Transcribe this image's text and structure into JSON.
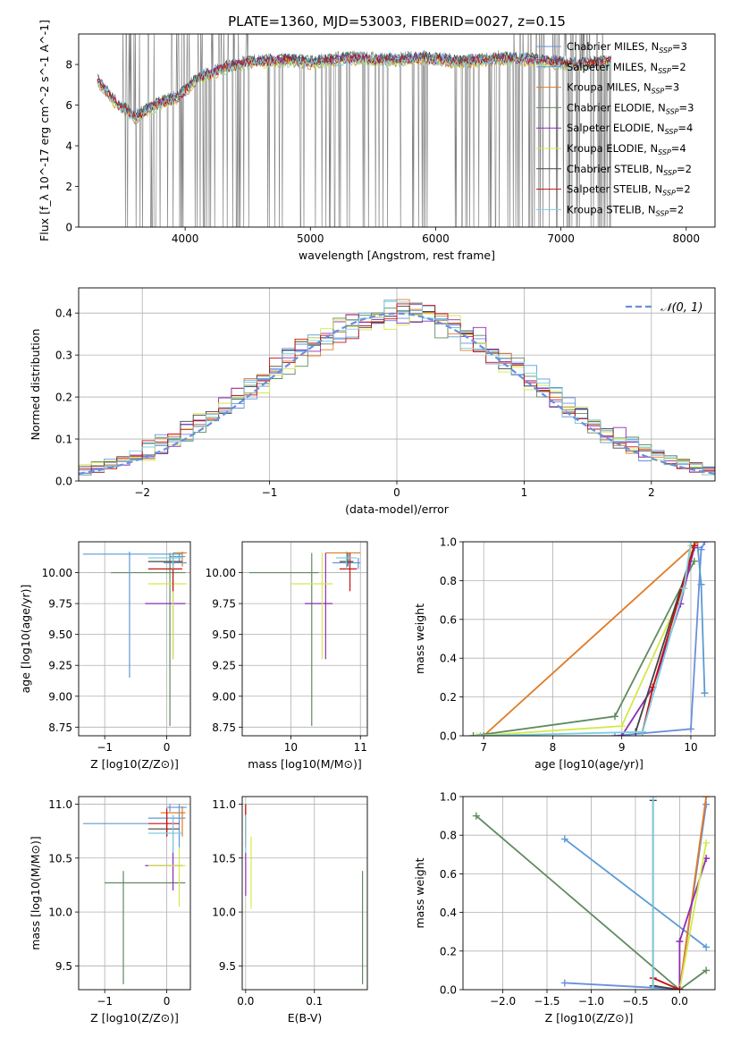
{
  "figure_title": "PLATE=1360, MJD=53003, FIBERID=0027, z=0.15",
  "models": [
    {
      "name": "Chabrier MILES",
      "nssp": "3",
      "color": "#6a8fdc"
    },
    {
      "name": "Salpeter MILES",
      "nssp": "2",
      "color": "#5b9bd5"
    },
    {
      "name": "Kroupa MILES",
      "nssp": "3",
      "color": "#e07b26"
    },
    {
      "name": "Chabrier ELODIE",
      "nssp": "3",
      "color": "#5f8a5f"
    },
    {
      "name": "Salpeter ELODIE",
      "nssp": "4",
      "color": "#8e2cb6"
    },
    {
      "name": "Kroupa ELODIE",
      "nssp": "4",
      "color": "#d4e84a"
    },
    {
      "name": "Chabrier STELIB",
      "nssp": "2",
      "color": "#444444"
    },
    {
      "name": "Salpeter STELIB",
      "nssp": "2",
      "color": "#c81010"
    },
    {
      "name": "Kroupa STELIB",
      "nssp": "2",
      "color": "#7ecfe0"
    }
  ],
  "chart_data": [
    {
      "id": "spectrum",
      "type": "line",
      "xlabel": "wavelength [Angstrom, rest frame]",
      "ylabel": "Flux [f_λ 10^-17 erg cm^-2 s^-1 A^-1]",
      "xlim": [
        3150,
        8230
      ],
      "ylim": [
        0,
        9.5
      ],
      "xticks": [
        4000,
        5000,
        6000,
        7000,
        8000
      ],
      "yticks": [
        0,
        2,
        4,
        6,
        8
      ],
      "grid": false,
      "legend": "top-right",
      "data_color": "#808080",
      "data_range": [
        3500,
        7400
      ],
      "model_range": [
        3300,
        7400
      ],
      "continuum": {
        "x": [
          3300,
          3450,
          3600,
          3800,
          3950,
          4100,
          4300,
          4500,
          4800,
          5000,
          5300,
          5600,
          5900,
          6200,
          6500,
          6800,
          7100,
          7400
        ],
        "y": [
          7.3,
          6.2,
          5.5,
          6.2,
          6.5,
          7.4,
          7.9,
          8.2,
          8.3,
          8.2,
          8.4,
          8.3,
          8.4,
          8.2,
          8.4,
          8.3,
          8.1,
          8.2
        ]
      }
    },
    {
      "id": "residuals",
      "type": "line",
      "xlabel": "(data-model)/error",
      "ylabel": "Normed distribution",
      "xlim": [
        -2.5,
        2.5
      ],
      "ylim": [
        0,
        0.46
      ],
      "xticks": [
        -2,
        -1,
        0,
        1,
        2
      ],
      "yticks": [
        0.0,
        0.1,
        0.2,
        0.3,
        0.4
      ],
      "grid": true,
      "legend": "top-right",
      "normal_label": "𝒩(0, 1)",
      "normal_color": "#6a8fdc",
      "bin_width": 0.1
    },
    {
      "id": "age_vs_Z",
      "type": "scatter",
      "xlabel": "Z [log10(Z/Z⊙)]",
      "ylabel": "age  [log10(age/yr)]",
      "xlim": [
        -1.42,
        0.38
      ],
      "ylim": [
        8.68,
        10.25
      ],
      "xticks": [
        -1,
        0
      ],
      "yticks": [
        8.75,
        9.0,
        9.25,
        9.5,
        9.75,
        10.0
      ],
      "grid": true,
      "points": [
        {
          "m": 0,
          "x": 0.05,
          "xl": -0.05,
          "xh": 0.32,
          "y": 10.08,
          "yl": 10.03,
          "yh": 10.12
        },
        {
          "m": 1,
          "x": 0.2,
          "xl": 0.05,
          "xh": 0.3,
          "y": 10.13,
          "yl": 10.08,
          "yh": 10.16
        },
        {
          "m": 2,
          "x": 0.25,
          "xl": 0.1,
          "xh": 0.32,
          "y": 10.16,
          "yl": 10.05,
          "yh": 10.17
        },
        {
          "m": 3,
          "x": 0.05,
          "xl": -0.9,
          "xh": 0.3,
          "y": 10.0,
          "yl": 8.76,
          "yh": 10.16
        },
        {
          "m": 4,
          "x": 0.1,
          "xl": -0.35,
          "xh": 0.3,
          "y": 9.75,
          "yl": 9.3,
          "yh": 10.16
        },
        {
          "m": 5,
          "x": 0.1,
          "xl": -0.3,
          "xh": 0.32,
          "y": 9.91,
          "yl": 9.3,
          "yh": 10.16
        },
        {
          "m": 6,
          "x": 0.1,
          "xl": -0.3,
          "xh": 0.25,
          "y": 10.09,
          "yl": 10.05,
          "yh": 10.16
        },
        {
          "m": 7,
          "x": 0.1,
          "xl": -0.3,
          "xh": 0.25,
          "y": 10.03,
          "yl": 9.85,
          "yh": 10.16
        },
        {
          "m": 8,
          "x": 0.1,
          "xl": -0.3,
          "xh": 0.25,
          "y": 10.12,
          "yl": 10.03,
          "yh": 10.16
        },
        {
          "m": 1,
          "x": -0.6,
          "xl": -1.35,
          "xh": 0.25,
          "y": 10.15,
          "yl": 9.15,
          "yh": 10.17
        }
      ]
    },
    {
      "id": "age_vs_mass",
      "type": "scatter",
      "xlabel": "mass [log10(M/M⊙)]",
      "ylabel": "",
      "xlim": [
        9.3,
        11.1
      ],
      "ylim": [
        8.68,
        10.25
      ],
      "xticks": [
        10,
        11
      ],
      "yticks": [
        8.75,
        9.0,
        9.25,
        9.5,
        9.75,
        10.0
      ],
      "grid": true,
      "points": [
        {
          "m": 0,
          "x": 10.97,
          "xl": 10.6,
          "xh": 11.0,
          "y": 10.08,
          "yl": 10.03,
          "yh": 10.12
        },
        {
          "m": 2,
          "x": 10.8,
          "xl": 10.5,
          "xh": 11.0,
          "y": 10.16,
          "yl": 10.05,
          "yh": 10.17
        },
        {
          "m": 3,
          "x": 10.3,
          "xl": 9.4,
          "xh": 10.4,
          "y": 10.0,
          "yl": 8.76,
          "yh": 10.16
        },
        {
          "m": 4,
          "x": 10.5,
          "xl": 10.2,
          "xh": 10.6,
          "y": 9.75,
          "yl": 9.3,
          "yh": 10.16
        },
        {
          "m": 5,
          "x": 10.45,
          "xl": 10.0,
          "xh": 10.6,
          "y": 9.91,
          "yl": 9.3,
          "yh": 10.16
        },
        {
          "m": 6,
          "x": 10.82,
          "xl": 10.7,
          "xh": 10.9,
          "y": 10.09,
          "yl": 10.05,
          "yh": 10.16
        },
        {
          "m": 7,
          "x": 10.85,
          "xl": 10.7,
          "xh": 10.95,
          "y": 10.03,
          "yl": 9.85,
          "yh": 10.16
        },
        {
          "m": 8,
          "x": 10.8,
          "xl": 10.65,
          "xh": 10.95,
          "y": 10.12,
          "yl": 10.03,
          "yh": 10.16
        }
      ]
    },
    {
      "id": "weight_vs_age",
      "type": "line",
      "xlabel": "age  [log10(age/yr)]",
      "ylabel": "mass weight",
      "xlim": [
        6.7,
        10.35
      ],
      "ylim": [
        0,
        1.0
      ],
      "xticks": [
        7,
        8,
        9,
        10
      ],
      "yticks": [
        0.0,
        0.2,
        0.4,
        0.6,
        0.8,
        1.0
      ],
      "grid": true,
      "series": [
        {
          "m": 0,
          "x": [
            8.9,
            10.0,
            10.15,
            10.2
          ],
          "y": [
            0.0,
            0.035,
            0.96,
            1.0
          ]
        },
        {
          "m": 1,
          "x": [
            10.1,
            10.15,
            10.2
          ],
          "y": [
            0.97,
            0.78,
            0.22
          ]
        },
        {
          "m": 2,
          "x": [
            7.0,
            10.1
          ],
          "y": [
            0.0,
            1.0
          ]
        },
        {
          "m": 3,
          "x": [
            6.85,
            8.9,
            10.05
          ],
          "y": [
            0.0,
            0.1,
            0.9
          ]
        },
        {
          "m": 4,
          "x": [
            9.0,
            9.45,
            9.85,
            10.05
          ],
          "y": [
            0.0,
            0.25,
            0.68,
            0.97
          ]
        },
        {
          "m": 5,
          "x": [
            6.9,
            9.0,
            9.9,
            10.0
          ],
          "y": [
            0.0,
            0.05,
            0.76,
            0.98
          ]
        },
        {
          "m": 6,
          "x": [
            9.2,
            10.05
          ],
          "y": [
            0.02,
            0.98
          ]
        },
        {
          "m": 7,
          "x": [
            9.3,
            9.45,
            10.05
          ],
          "y": [
            0.02,
            0.25,
            0.98
          ]
        },
        {
          "m": 8,
          "x": [
            6.95,
            9.3,
            9.9,
            10.0
          ],
          "y": [
            0.0,
            0.02,
            0.76,
            1.0
          ]
        }
      ]
    },
    {
      "id": "mass_vs_Z",
      "type": "scatter",
      "xlabel": "Z [log10(Z/Z⊙)]",
      "ylabel": "mass [log10(M/M⊙)]",
      "xlim": [
        -1.42,
        0.38
      ],
      "ylim": [
        9.28,
        11.07
      ],
      "xticks": [
        -1,
        0
      ],
      "yticks": [
        9.5,
        10.0,
        10.5,
        11.0
      ],
      "grid": true,
      "points": [
        {
          "m": 0,
          "x": 0.05,
          "xl": 0.0,
          "xh": 0.32,
          "y": 10.97,
          "yl": 10.93,
          "yh": 11.0
        },
        {
          "m": 1,
          "x": 0.2,
          "xl": -0.3,
          "xh": 0.3,
          "y": 10.87,
          "yl": 10.6,
          "yh": 11.0
        },
        {
          "m": 2,
          "x": 0.25,
          "xl": -0.1,
          "xh": 0.3,
          "y": 10.92,
          "yl": 10.7,
          "yh": 10.98
        },
        {
          "m": 3,
          "x": -0.7,
          "xl": -1.0,
          "xh": 0.3,
          "y": 10.27,
          "yl": 9.33,
          "yh": 10.38
        },
        {
          "m": 4,
          "x": 0.1,
          "xl": -0.35,
          "xh": 0.25,
          "y": 10.43,
          "yl": 10.2,
          "yh": 10.9
        },
        {
          "m": 5,
          "x": 0.2,
          "xl": -0.3,
          "xh": 0.3,
          "y": 10.43,
          "yl": 10.05,
          "yh": 10.6
        },
        {
          "m": 6,
          "x": 0.0,
          "xl": -0.3,
          "xh": 0.2,
          "y": 10.77,
          "yl": 10.7,
          "yh": 10.92
        },
        {
          "m": 7,
          "x": 0.0,
          "xl": -0.3,
          "xh": 0.2,
          "y": 10.82,
          "yl": 10.7,
          "yh": 10.96
        },
        {
          "m": 8,
          "x": 0.1,
          "xl": -0.3,
          "xh": 0.25,
          "y": 10.73,
          "yl": 10.55,
          "yh": 10.9
        },
        {
          "m": 1,
          "x": -0.6,
          "xl": -1.35,
          "xh": -0.3,
          "y": 10.82,
          "yl": 10.82,
          "yh": 10.82
        }
      ]
    },
    {
      "id": "mass_vs_EBV",
      "type": "scatter",
      "xlabel": "E(B-V)",
      "ylabel": "",
      "xlim": [
        -0.005,
        0.177
      ],
      "ylim": [
        9.28,
        11.07
      ],
      "xticks": [
        0.0,
        0.1
      ],
      "yticks": [
        9.5,
        10.0,
        10.5,
        11.0
      ],
      "grid": true,
      "points": [
        {
          "m": 0,
          "x": 0.0,
          "xl": 0.0,
          "xh": 0.0,
          "y": 10.97,
          "yl": 10.9,
          "yh": 11.0
        },
        {
          "m": 2,
          "x": 0.0,
          "xl": 0.0,
          "xh": 0.0,
          "y": 10.92,
          "yl": 10.7,
          "yh": 10.98
        },
        {
          "m": 3,
          "x": 0.17,
          "xl": 0.17,
          "xh": 0.17,
          "y": 10.27,
          "yl": 9.33,
          "yh": 10.38
        },
        {
          "m": 4,
          "x": 0.0,
          "xl": 0.0,
          "xh": 0.0,
          "y": 10.43,
          "yl": 10.15,
          "yh": 10.55
        },
        {
          "m": 5,
          "x": 0.008,
          "xl": 0.008,
          "xh": 0.008,
          "y": 10.43,
          "yl": 10.03,
          "yh": 10.7
        },
        {
          "m": 7,
          "x": 0.0,
          "xl": 0.0,
          "xh": 0.0,
          "y": 10.82,
          "yl": 10.6,
          "yh": 11.0
        },
        {
          "m": 8,
          "x": 0.0,
          "xl": 0.0,
          "xh": 0.0,
          "y": 10.73,
          "yl": 10.55,
          "yh": 10.9
        }
      ]
    },
    {
      "id": "weight_vs_Z",
      "type": "line",
      "xlabel": "Z [log10(Z/Z⊙)]",
      "ylabel": "mass weight",
      "xlim": [
        -2.45,
        0.4
      ],
      "ylim": [
        0,
        1.0
      ],
      "xticks": [
        -2.0,
        -1.5,
        -1.0,
        -0.5,
        0.0
      ],
      "yticks": [
        0.0,
        0.2,
        0.4,
        0.6,
        0.8,
        1.0
      ],
      "grid": true,
      "series": [
        {
          "m": 0,
          "x": [
            -1.3,
            -0.3,
            0.0,
            0.3
          ],
          "y": [
            0.035,
            0.01,
            0.0,
            0.96
          ]
        },
        {
          "m": 1,
          "x": [
            -1.3,
            0.3
          ],
          "y": [
            0.78,
            0.22
          ]
        },
        {
          "m": 2,
          "x": [
            0.0,
            0.3
          ],
          "y": [
            0.0,
            1.0
          ]
        },
        {
          "m": 3,
          "x": [
            -2.3,
            0.0,
            0.3
          ],
          "y": [
            0.9,
            0.0,
            0.1
          ]
        },
        {
          "m": 4,
          "x": [
            0.0,
            0.0,
            0.3
          ],
          "y": [
            0.0,
            0.25,
            0.68
          ]
        },
        {
          "m": 5,
          "x": [
            0.0,
            0.3
          ],
          "y": [
            0.0,
            0.76
          ]
        },
        {
          "m": 6,
          "x": [
            -0.3,
            -0.3,
            0.0
          ],
          "y": [
            0.98,
            0.02,
            0.0
          ]
        },
        {
          "m": 7,
          "x": [
            -0.3,
            0.0
          ],
          "y": [
            0.06,
            0.0
          ]
        },
        {
          "m": 8,
          "x": [
            -0.3,
            -0.3
          ],
          "y": [
            0.0,
            1.0
          ]
        }
      ]
    }
  ]
}
